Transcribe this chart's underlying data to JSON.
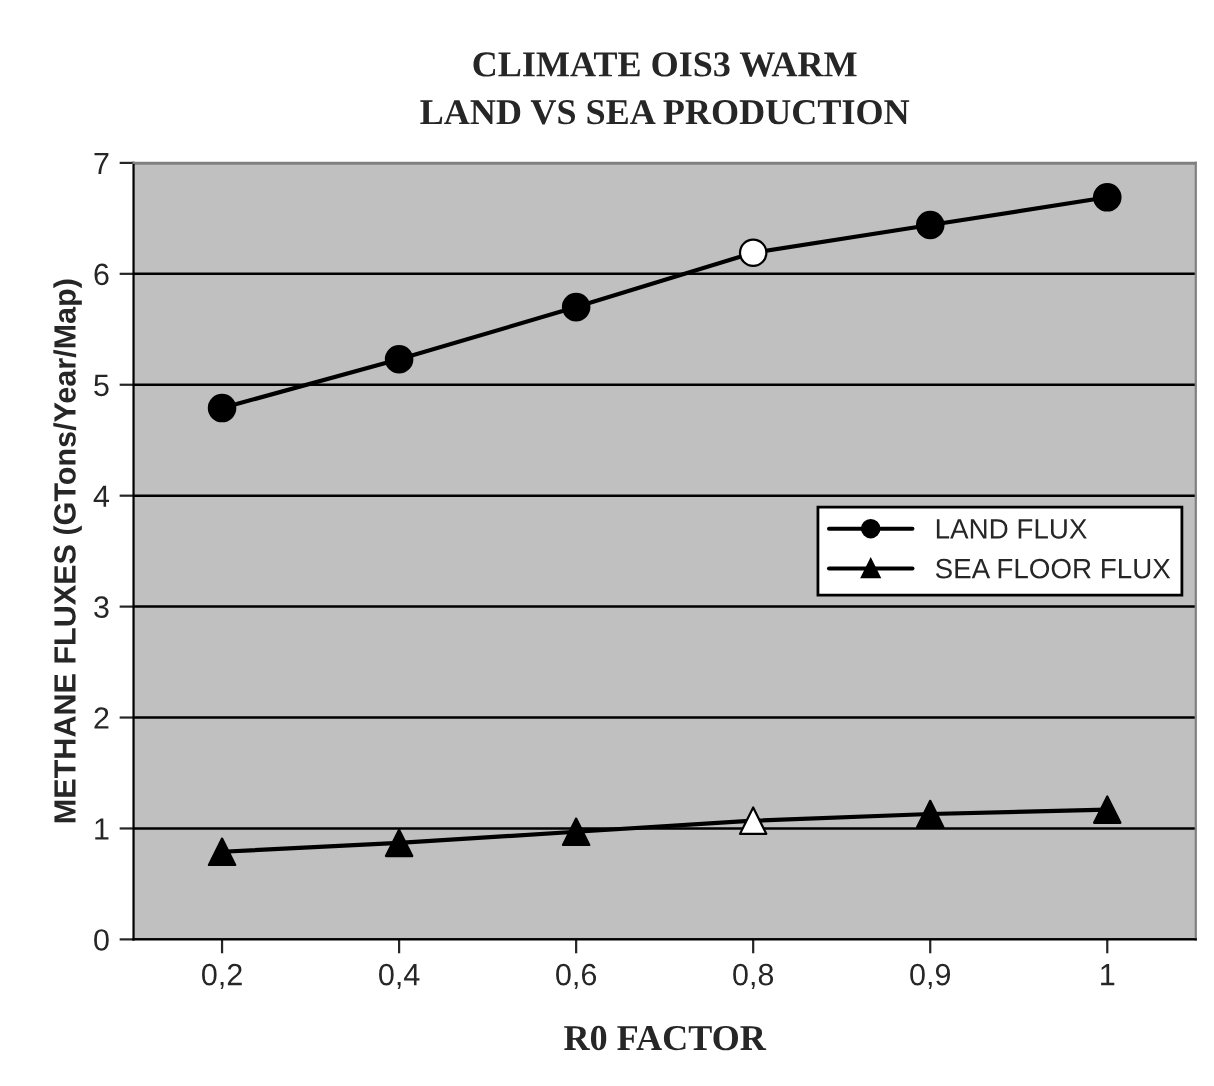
{
  "chart_data": {
    "type": "line",
    "title": "CLIMATE OIS3 WARM\nLAND VS SEA PRODUCTION",
    "xlabel": "R0 FACTOR",
    "ylabel": "METHANE FLUXES (GTons/Year/Map)",
    "categories": [
      "0,2",
      "0,4",
      "0,6",
      "0,8",
      "0,9",
      "1"
    ],
    "series": [
      {
        "name": "LAND FLUX",
        "color": "#000000",
        "marker": "circle",
        "colors": [
          "#000000",
          "#000000",
          "#000000",
          "#ffffff",
          "#000000",
          "#000000"
        ],
        "values": [
          4.79,
          5.23,
          5.7,
          6.19,
          6.44,
          6.69
        ]
      },
      {
        "name": "SEA FLOOR FLUX",
        "color": "#000000",
        "marker": "triangle",
        "colors": [
          "#000000",
          "#000000",
          "#000000",
          "#ffffff",
          "#000000",
          "#000000"
        ],
        "values": [
          0.79,
          0.87,
          0.97,
          1.07,
          1.13,
          1.17
        ]
      }
    ],
    "ylim": [
      0,
      7
    ],
    "yticks": [
      0,
      1,
      2,
      3,
      4,
      5,
      6,
      7
    ],
    "grid": "y",
    "legend": "right",
    "line_style": "solid"
  }
}
